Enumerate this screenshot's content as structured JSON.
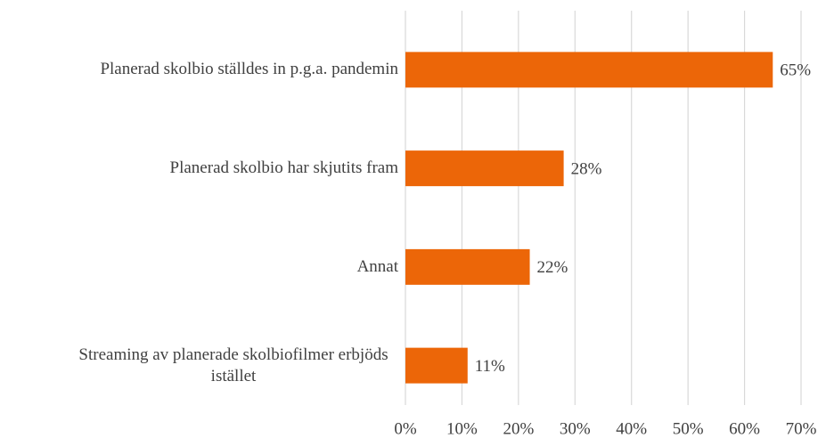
{
  "chart_data": {
    "type": "bar",
    "orientation": "horizontal",
    "categories": [
      "Planerad skolbio ställdes in p.g.a. pandemin",
      "Planerad skolbio har skjutits fram",
      "Annat",
      "Streaming av planerade skolbiofilmer erbjöds istället"
    ],
    "values": [
      65,
      28,
      22,
      11
    ],
    "value_labels": [
      "65%",
      "28%",
      "22%",
      "11%"
    ],
    "color": "#ec6608",
    "xlim": [
      0,
      70
    ],
    "xticks": [
      {
        "value": 0,
        "label": "0%"
      },
      {
        "value": 10,
        "label": "10%"
      },
      {
        "value": 20,
        "label": "20%"
      },
      {
        "value": 30,
        "label": "30%"
      },
      {
        "value": 40,
        "label": "40%"
      },
      {
        "value": 50,
        "label": "50%"
      },
      {
        "value": 60,
        "label": "60%"
      },
      {
        "value": 70,
        "label": "70%"
      }
    ],
    "grid": true
  }
}
